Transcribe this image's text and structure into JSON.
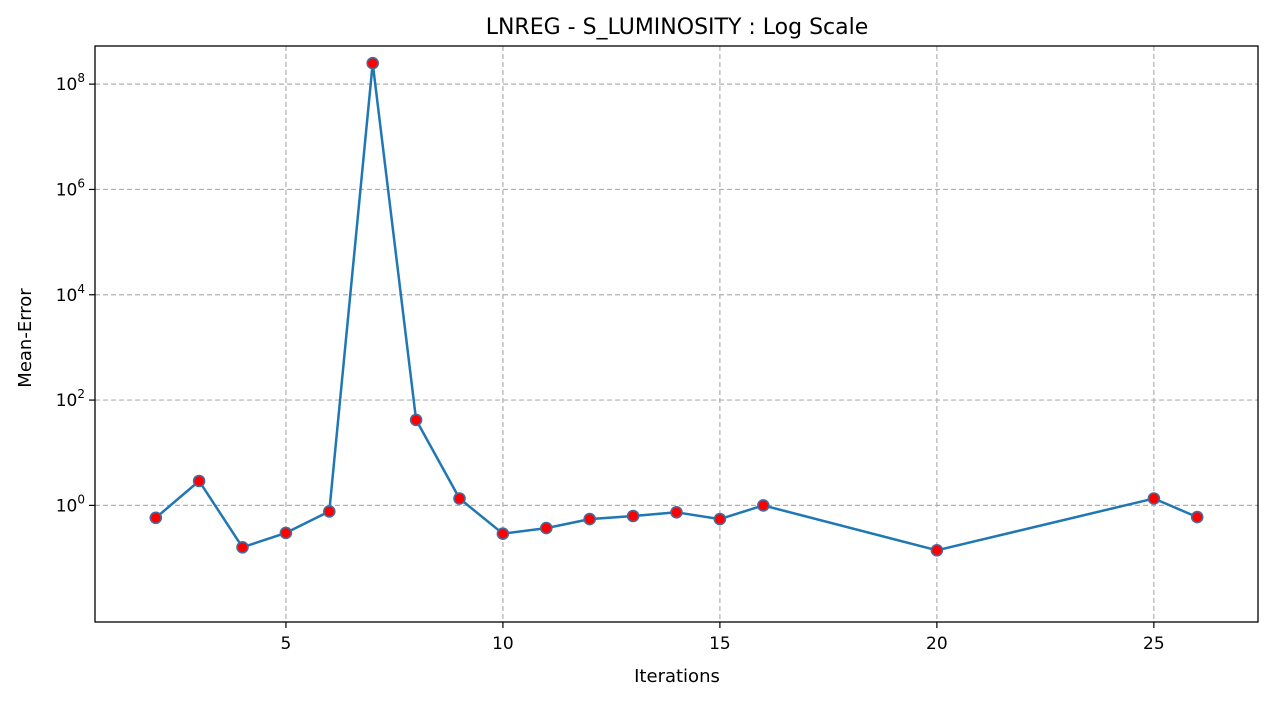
{
  "chart_data": {
    "type": "line",
    "title": "LNREG - S_LUMINOSITY : Log Scale",
    "xlabel": "Iterations",
    "ylabel": "Mean-Error",
    "yscale": "log",
    "grid": true,
    "xlim": [
      0.6,
      27.4
    ],
    "ylim": [
      0.0061,
      530000000
    ],
    "x_ticks": [
      5,
      10,
      15,
      20,
      25
    ],
    "y_ticks": [
      {
        "value": 1,
        "base": "10",
        "exp": "0"
      },
      {
        "value": 100,
        "base": "10",
        "exp": "2"
      },
      {
        "value": 10000,
        "base": "10",
        "exp": "4"
      },
      {
        "value": 1000000,
        "base": "10",
        "exp": "6"
      },
      {
        "value": 100000000,
        "base": "10",
        "exp": "8"
      }
    ],
    "series": [
      {
        "line_color": "#1f77b4",
        "marker_face": "#ff0000",
        "marker_edge": "#4a6a9a",
        "x": [
          2,
          3,
          4,
          5,
          6,
          7,
          8,
          9,
          10,
          11,
          12,
          13,
          14,
          15,
          16,
          20,
          25,
          26
        ],
        "y": [
          0.58,
          2.9,
          0.16,
          0.3,
          0.77,
          250000000,
          42,
          1.35,
          0.29,
          0.37,
          0.55,
          0.63,
          0.74,
          0.55,
          1.0,
          0.14,
          1.35,
          0.6
        ]
      }
    ]
  }
}
